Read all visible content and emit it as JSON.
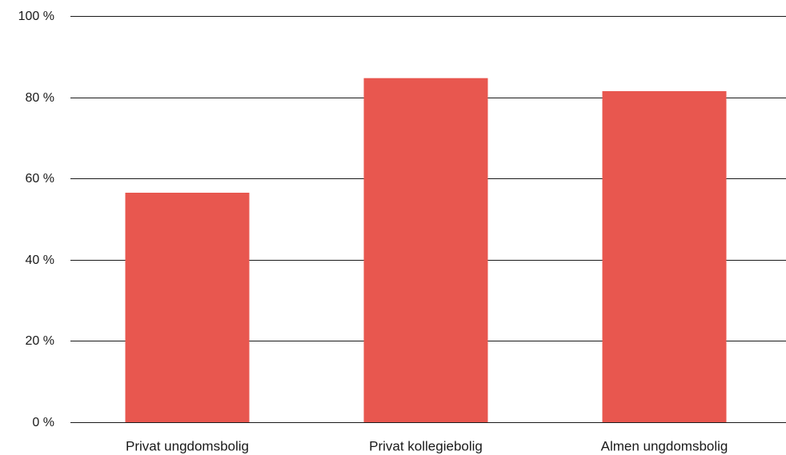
{
  "chart_data": {
    "type": "bar",
    "categories": [
      "Privat ungdomsbolig",
      "Privat kollegiebolig",
      "Almen ungdomsbolig"
    ],
    "values": [
      56.5,
      84.7,
      81.5
    ],
    "yticks": [
      "0 %",
      "20 %",
      "40 %",
      "60 %",
      "80 %",
      "100 %"
    ],
    "ylim": [
      0,
      100
    ],
    "grid": true,
    "bar_color": "#e8574f",
    "title": "",
    "xlabel": "",
    "ylabel": ""
  }
}
